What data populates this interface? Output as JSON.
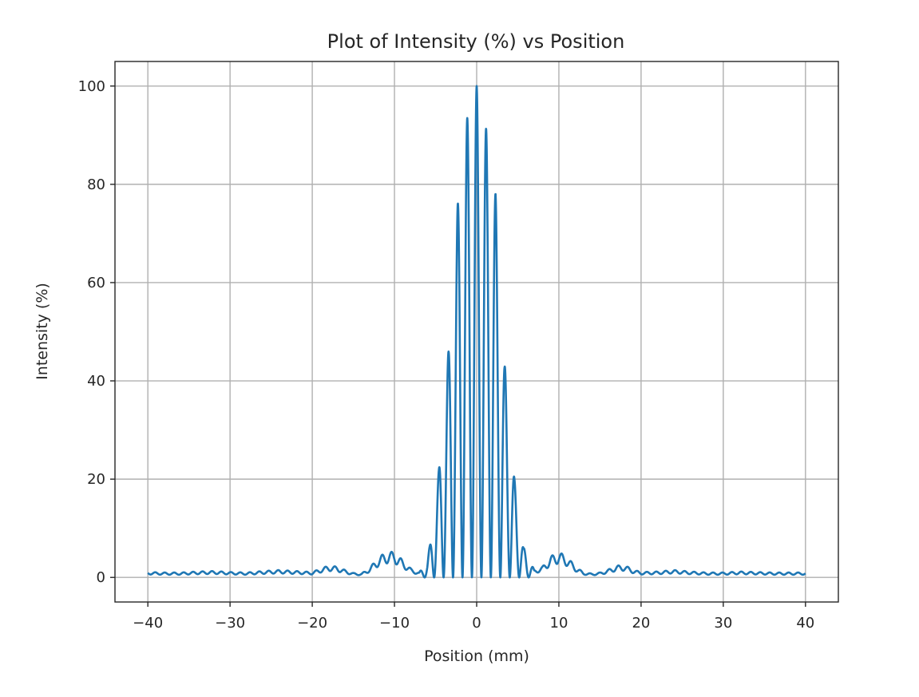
{
  "chart_data": {
    "type": "line",
    "title": "Plot of Intensity (%) vs Position",
    "xlabel": "Position (mm)",
    "ylabel": "Intensity (%)",
    "xlim": [
      -44,
      44
    ],
    "ylim": [
      -5,
      105
    ],
    "xticks": [
      -40,
      -30,
      -20,
      -10,
      0,
      10,
      20,
      30,
      40
    ],
    "xtick_labels": [
      "−40",
      "−30",
      "−20",
      "−10",
      "0",
      "10",
      "20",
      "30",
      "40"
    ],
    "yticks": [
      0,
      20,
      40,
      60,
      80,
      100
    ],
    "ytick_labels": [
      "0",
      "20",
      "40",
      "60",
      "80",
      "100"
    ],
    "grid": true,
    "legend": "none",
    "series": [
      {
        "color": "#1f77b4",
        "fringe_period_mm": 1.15,
        "x": [
          -40,
          -38,
          -36,
          -34,
          -32,
          -30,
          -28,
          -26,
          -24,
          -22,
          -20,
          -19,
          -18,
          -17,
          -16,
          -15,
          -14,
          -13,
          -12,
          -11,
          -10,
          -9,
          -8,
          -7,
          -6,
          -5.7,
          -4.6,
          -3.4,
          -2.3,
          -1.15,
          0,
          1.15,
          2.3,
          3.4,
          4.6,
          5.7,
          6,
          7,
          8,
          9,
          10,
          11,
          12,
          13,
          14,
          15,
          16,
          17,
          18,
          19,
          20,
          22,
          24,
          26,
          28,
          30,
          32,
          34,
          36,
          38,
          40
        ],
        "envelope": [
          1.1,
          1.0,
          1.0,
          1.2,
          1.3,
          1.1,
          1.0,
          1.3,
          1.5,
          1.3,
          1.1,
          1.8,
          2.4,
          2.2,
          1.5,
          0.9,
          0.8,
          2.0,
          4.0,
          5.2,
          5.2,
          3.5,
          1.8,
          1.0,
          3.5,
          6.5,
          21.8,
          46.7,
          76.0,
          93.5,
          100,
          91.3,
          78.0,
          43.6,
          19.9,
          6.0,
          5.5,
          1.5,
          2.2,
          4.3,
          5.2,
          4.2,
          2.3,
          1.0,
          0.8,
          1.0,
          1.6,
          2.4,
          2.5,
          1.6,
          1.1,
          1.2,
          1.5,
          1.2,
          1.0,
          1.0,
          1.2,
          1.1,
          1.0,
          1.0,
          1.0
        ]
      }
    ]
  }
}
